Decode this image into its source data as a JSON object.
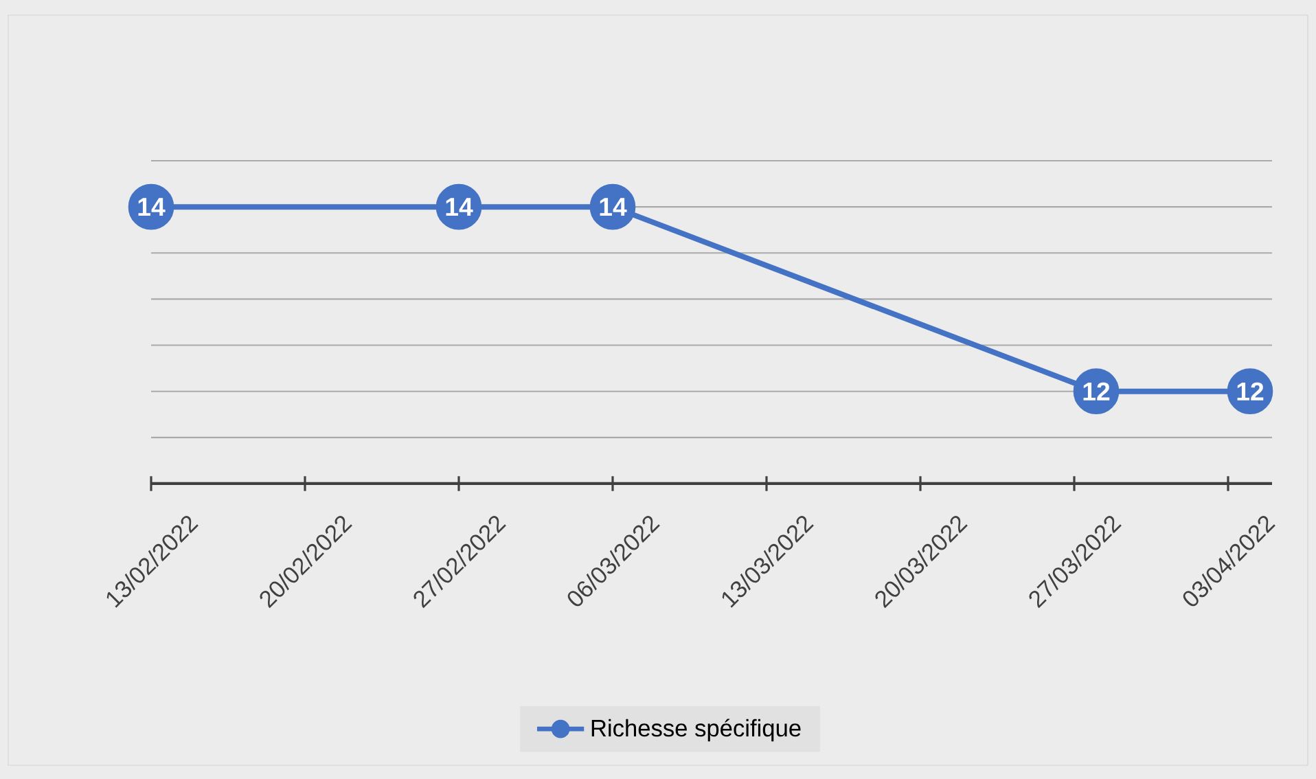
{
  "chart_data": {
    "type": "line",
    "x": [
      "2022-02-13",
      "2022-02-27",
      "2022-03-06",
      "2022-03-28",
      "2022-04-04"
    ],
    "series": [
      {
        "name": "Richesse spécifique",
        "color": "#4472c4",
        "values": [
          14,
          14,
          14,
          12,
          12
        ]
      }
    ],
    "xlim": [
      "2022-02-13",
      "2022-04-05"
    ],
    "xticks": [
      {
        "value": "2022-02-13",
        "label": "13/02/2022"
      },
      {
        "value": "2022-02-20",
        "label": "20/02/2022"
      },
      {
        "value": "2022-02-27",
        "label": "27/02/2022"
      },
      {
        "value": "2022-03-06",
        "label": "06/03/2022"
      },
      {
        "value": "2022-03-13",
        "label": "13/03/2022"
      },
      {
        "value": "2022-03-20",
        "label": "20/03/2022"
      },
      {
        "value": "2022-03-27",
        "label": "27/03/2022"
      },
      {
        "value": "2022-04-03",
        "label": "03/04/2022"
      }
    ],
    "tick_labels": "x",
    "grid": "y",
    "legend": "bottom",
    "marker": "circle",
    "line_style": "solid",
    "data_labels": true
  }
}
